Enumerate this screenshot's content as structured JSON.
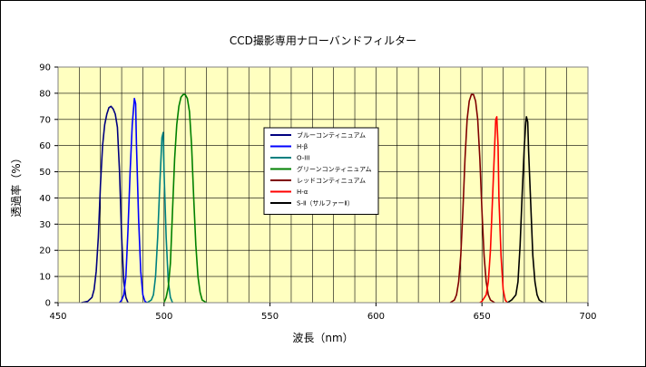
{
  "chart_data": {
    "type": "line",
    "title": "CCD撮影専用ナローバンドフィルター",
    "xlabel": "波長（nm）",
    "ylabel": "透過率（%）",
    "xlim": [
      450,
      700
    ],
    "ylim": [
      0,
      90
    ],
    "x_ticks": [
      450,
      500,
      550,
      600,
      650,
      700
    ],
    "y_ticks": [
      0,
      10,
      20,
      30,
      40,
      50,
      60,
      70,
      80,
      90
    ],
    "x_minor_step": 10,
    "grid": true,
    "background_color": "#ffffc0",
    "legend_position": "center",
    "series": [
      {
        "name": "ブルーコンティニュアム",
        "color": "#000080",
        "points": [
          [
            461,
            0
          ],
          [
            464,
            0.5
          ],
          [
            466,
            2
          ],
          [
            467,
            5
          ],
          [
            468,
            12
          ],
          [
            469,
            25
          ],
          [
            470,
            45
          ],
          [
            471,
            60
          ],
          [
            472,
            68
          ],
          [
            473,
            72
          ],
          [
            474,
            74.5
          ],
          [
            475,
            75
          ],
          [
            476,
            74
          ],
          [
            477,
            72
          ],
          [
            478,
            67
          ],
          [
            479,
            50
          ],
          [
            480,
            25
          ],
          [
            481,
            8
          ],
          [
            482,
            2
          ],
          [
            483,
            0
          ]
        ]
      },
      {
        "name": "H-β",
        "color": "#0000ff",
        "points": [
          [
            479,
            0
          ],
          [
            480,
            1
          ],
          [
            481,
            3
          ],
          [
            482,
            10
          ],
          [
            483,
            28
          ],
          [
            484,
            50
          ],
          [
            485,
            68
          ],
          [
            486,
            78
          ],
          [
            486.6,
            76
          ],
          [
            487,
            60
          ],
          [
            488,
            32
          ],
          [
            489,
            12
          ],
          [
            490,
            3
          ],
          [
            491,
            0.5
          ],
          [
            492,
            0
          ]
        ]
      },
      {
        "name": "O-III",
        "color": "#008080",
        "points": [
          [
            492,
            0
          ],
          [
            494,
            1
          ],
          [
            495,
            3
          ],
          [
            496,
            10
          ],
          [
            497,
            25
          ],
          [
            498,
            45
          ],
          [
            499,
            63
          ],
          [
            499.6,
            65
          ],
          [
            500,
            50
          ],
          [
            501,
            25
          ],
          [
            502,
            8
          ],
          [
            503,
            2
          ],
          [
            504,
            0
          ]
        ]
      },
      {
        "name": "グリーンコンティニュアム",
        "color": "#008000",
        "points": [
          [
            500,
            0
          ],
          [
            501,
            2
          ],
          [
            502,
            6
          ],
          [
            503,
            15
          ],
          [
            504,
            35
          ],
          [
            505,
            55
          ],
          [
            506,
            68
          ],
          [
            507,
            75
          ],
          [
            508,
            78.5
          ],
          [
            509,
            79.5
          ],
          [
            510,
            79.5
          ],
          [
            511,
            78
          ],
          [
            512,
            73
          ],
          [
            513,
            60
          ],
          [
            514,
            40
          ],
          [
            515,
            22
          ],
          [
            516,
            10
          ],
          [
            517,
            4
          ],
          [
            518,
            1
          ],
          [
            520,
            0
          ]
        ]
      },
      {
        "name": "レッドコンティニュアム",
        "color": "#800000",
        "points": [
          [
            635,
            0
          ],
          [
            637,
            1
          ],
          [
            638,
            3
          ],
          [
            639,
            8
          ],
          [
            640,
            18
          ],
          [
            641,
            35
          ],
          [
            642,
            55
          ],
          [
            643,
            70
          ],
          [
            644,
            77
          ],
          [
            645,
            79.5
          ],
          [
            646,
            79.5
          ],
          [
            647,
            77
          ],
          [
            648,
            70
          ],
          [
            649,
            55
          ],
          [
            650,
            35
          ],
          [
            651,
            18
          ],
          [
            652,
            8
          ],
          [
            653,
            3
          ],
          [
            654,
            1
          ],
          [
            656,
            0
          ]
        ]
      },
      {
        "name": "H-α",
        "color": "#ff0000",
        "points": [
          [
            649,
            0
          ],
          [
            650,
            0.5
          ],
          [
            652,
            3
          ],
          [
            653,
            8
          ],
          [
            654,
            20
          ],
          [
            655,
            40
          ],
          [
            656,
            60
          ],
          [
            656.5,
            70
          ],
          [
            657,
            71
          ],
          [
            657.6,
            60
          ],
          [
            658,
            40
          ],
          [
            659,
            18
          ],
          [
            660,
            5
          ],
          [
            661,
            1
          ],
          [
            662,
            0
          ]
        ]
      },
      {
        "name": "S-Ⅱ（サルファーⅡ）",
        "color": "#000000",
        "points": [
          [
            662,
            0
          ],
          [
            664,
            1
          ],
          [
            666,
            3
          ],
          [
            667,
            8
          ],
          [
            668,
            22
          ],
          [
            669,
            42
          ],
          [
            670,
            60
          ],
          [
            670.7,
            69
          ],
          [
            671,
            71
          ],
          [
            671.6,
            69
          ],
          [
            672,
            58
          ],
          [
            673,
            38
          ],
          [
            674,
            18
          ],
          [
            675,
            8
          ],
          [
            676,
            3
          ],
          [
            677,
            1
          ],
          [
            679,
            0
          ]
        ]
      }
    ]
  }
}
